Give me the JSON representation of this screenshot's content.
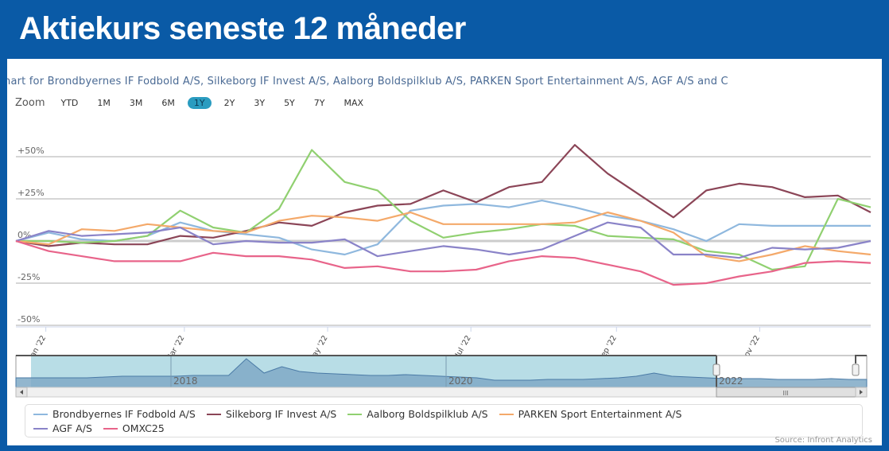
{
  "header": {
    "title": "Aktiekurs seneste 12 måneder"
  },
  "chart_header": {
    "title": "hart for Brondbyernes IF Fodbold A/S, Silkeborg IF Invest A/S, Aalborg Boldspilklub A/S, PARKEN Sport Entertainment A/S, AGF A/S and C"
  },
  "zoom": {
    "label": "Zoom",
    "buttons": [
      "YTD",
      "1M",
      "3M",
      "6M",
      "1Y",
      "2Y",
      "3Y",
      "5Y",
      "7Y",
      "MAX"
    ],
    "active": "1Y"
  },
  "navigator": {
    "year_labels": [
      "2018",
      "2020",
      "2022"
    ],
    "scrollbar_grip": "III"
  },
  "source": "Source: Infront Analytics",
  "chart_data": {
    "type": "line",
    "title": "",
    "xlabel": "",
    "ylabel": "",
    "ylim": [
      -50,
      60
    ],
    "yticks": [
      50,
      25,
      0,
      -25,
      -50
    ],
    "ytick_labels": [
      "+50%",
      "+25%",
      "0%",
      "-25%",
      "-50%"
    ],
    "xtick_labels": [
      "Jan '22",
      "Mar '22",
      "May '22",
      "Jul '22",
      "Sep '22",
      "Nov '22"
    ],
    "xtick_dates": [
      "2022-01-01",
      "2022-03-01",
      "2022-05-01",
      "2022-07-01",
      "2022-09-01",
      "2022-11-01"
    ],
    "grid": true,
    "legend": "bottom",
    "x": [
      "2021-12-24",
      "2022-01-07",
      "2022-01-21",
      "2022-02-04",
      "2022-02-18",
      "2022-03-04",
      "2022-03-18",
      "2022-04-01",
      "2022-04-15",
      "2022-04-29",
      "2022-05-13",
      "2022-05-27",
      "2022-06-10",
      "2022-06-24",
      "2022-07-08",
      "2022-07-22",
      "2022-08-05",
      "2022-08-19",
      "2022-09-02",
      "2022-09-16",
      "2022-09-30",
      "2022-10-14",
      "2022-10-28",
      "2022-11-11",
      "2022-11-25",
      "2022-12-09",
      "2022-12-23"
    ],
    "series": [
      {
        "name": "Brondbyernes IF Fodbold A/S",
        "color": "#8fb8de",
        "values": [
          0,
          5,
          1,
          0,
          3,
          11,
          6,
          4,
          2,
          -5,
          -8,
          -2,
          18,
          21,
          22,
          20,
          24,
          20,
          15,
          12,
          7,
          0,
          10,
          9,
          9,
          9,
          9
        ]
      },
      {
        "name": "Silkeborg IF Invest A/S",
        "color": "#8b4557",
        "values": [
          0,
          -3,
          -1,
          -2,
          -2,
          3,
          2,
          6,
          11,
          9,
          17,
          21,
          22,
          30,
          23,
          32,
          35,
          57,
          40,
          27,
          14,
          30,
          34,
          32,
          26,
          27,
          17
        ]
      },
      {
        "name": "Aalborg Boldspilklub A/S",
        "color": "#90d070",
        "values": [
          0,
          0,
          -1,
          0,
          3,
          18,
          8,
          5,
          19,
          54,
          35,
          30,
          12,
          2,
          5,
          7,
          10,
          9,
          3,
          2,
          1,
          -6,
          -8,
          -17,
          -15,
          25,
          20
        ]
      },
      {
        "name": "PARKEN Sport Entertainment A/S",
        "color": "#f4a96a",
        "values": [
          0,
          -2,
          7,
          6,
          10,
          8,
          6,
          5,
          12,
          15,
          14,
          12,
          17,
          10,
          10,
          10,
          10,
          11,
          17,
          12,
          5,
          -9,
          -12,
          -8,
          -3,
          -6,
          -8
        ]
      },
      {
        "name": "AGF A/S",
        "color": "#8a83c8",
        "values": [
          0,
          6,
          3,
          4,
          5,
          8,
          -2,
          0,
          -1,
          -1,
          1,
          -9,
          -6,
          -3,
          -5,
          -8,
          -5,
          3,
          11,
          8,
          -8,
          -8,
          -10,
          -4,
          -5,
          -4,
          0
        ]
      },
      {
        "name": "OMXC25",
        "color": "#e8648a",
        "values": [
          0,
          -6,
          -9,
          -12,
          -12,
          -12,
          -7,
          -9,
          -9,
          -11,
          -16,
          -15,
          -18,
          -18,
          -17,
          -12,
          -9,
          -10,
          -14,
          -18,
          -26,
          -25,
          -21,
          -18,
          -13,
          -12,
          -13
        ]
      }
    ]
  }
}
